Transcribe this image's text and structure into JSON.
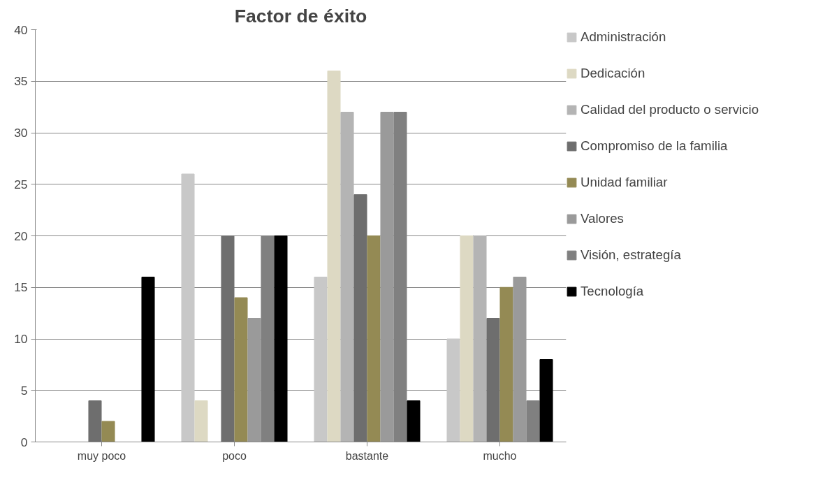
{
  "chart_data": {
    "type": "bar",
    "title": "Factor de éxito",
    "categories": [
      "muy poco",
      "poco",
      "bastante",
      "mucho"
    ],
    "series": [
      {
        "name": "Administración",
        "color": "#c8c8c8",
        "values": [
          0,
          26,
          16,
          10
        ]
      },
      {
        "name": "Dedicación",
        "color": "#ddd9c3",
        "values": [
          0,
          4,
          36,
          20
        ]
      },
      {
        "name": "Calidad del producto o servicio",
        "color": "#b4b4b4",
        "values": [
          0,
          0,
          32,
          20
        ]
      },
      {
        "name": "Compromiso de la familia",
        "color": "#6e6e6e",
        "values": [
          4,
          20,
          24,
          12
        ]
      },
      {
        "name": "Unidad familiar",
        "color": "#948a54",
        "values": [
          2,
          14,
          20,
          15
        ]
      },
      {
        "name": "Valores",
        "color": "#9a9a9a",
        "values": [
          0,
          12,
          32,
          16
        ]
      },
      {
        "name": "Visión, estrategía",
        "color": "#808080",
        "values": [
          0,
          20,
          32,
          4
        ]
      },
      {
        "name": "Tecnología",
        "color": "#000000",
        "values": [
          16,
          20,
          4,
          8
        ]
      }
    ],
    "ylim": [
      0,
      40
    ],
    "yticks": [
      0,
      5,
      10,
      15,
      20,
      25,
      30,
      35,
      40
    ],
    "grid": "y",
    "legend": "right"
  }
}
